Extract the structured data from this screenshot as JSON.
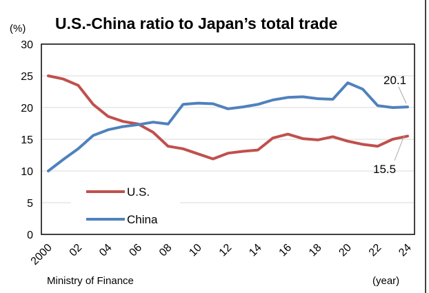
{
  "chart_data": {
    "type": "line",
    "title": "U.S.-China ratio to Japan’s total trade",
    "ylabel": "(%)",
    "xlabel": "(year)",
    "source": "Ministry of Finance",
    "ylim": [
      0,
      30
    ],
    "yticks": [
      "0",
      "5",
      "10",
      "15",
      "20",
      "25",
      "30"
    ],
    "xlim": [
      2000,
      2024
    ],
    "xticks": [
      {
        "value": 2000,
        "label": "2000"
      },
      {
        "value": 2002,
        "label": "02"
      },
      {
        "value": 2004,
        "label": "04"
      },
      {
        "value": 2006,
        "label": "06"
      },
      {
        "value": 2008,
        "label": "08"
      },
      {
        "value": 2010,
        "label": "10"
      },
      {
        "value": 2012,
        "label": "12"
      },
      {
        "value": 2014,
        "label": "14"
      },
      {
        "value": 2016,
        "label": "16"
      },
      {
        "value": 2018,
        "label": "18"
      },
      {
        "value": 2020,
        "label": "20"
      },
      {
        "value": 2022,
        "label": "22"
      },
      {
        "value": 2024,
        "label": "24"
      }
    ],
    "x": [
      2000,
      2001,
      2002,
      2003,
      2004,
      2005,
      2006,
      2007,
      2008,
      2009,
      2010,
      2011,
      2012,
      2013,
      2014,
      2015,
      2016,
      2017,
      2018,
      2019,
      2020,
      2021,
      2022,
      2023,
      2024
    ],
    "grid": "horizontal",
    "series": [
      {
        "name": "U.S.",
        "color": "#c0504d",
        "values": [
          25.0,
          24.5,
          23.5,
          20.5,
          18.6,
          17.8,
          17.4,
          16.1,
          13.9,
          13.5,
          12.7,
          11.9,
          12.8,
          13.1,
          13.3,
          15.2,
          15.8,
          15.1,
          14.9,
          15.4,
          14.7,
          14.2,
          13.9,
          15.0,
          15.5
        ],
        "end_label": "15.5"
      },
      {
        "name": "China",
        "color": "#4f81bd",
        "values": [
          10.0,
          11.8,
          13.5,
          15.6,
          16.5,
          17.0,
          17.3,
          17.7,
          17.4,
          20.5,
          20.7,
          20.6,
          19.8,
          20.1,
          20.5,
          21.2,
          21.6,
          21.7,
          21.4,
          21.3,
          23.9,
          22.9,
          20.3,
          20.0,
          20.1
        ],
        "end_label": "20.1"
      }
    ],
    "legend_position": "lower-left"
  }
}
